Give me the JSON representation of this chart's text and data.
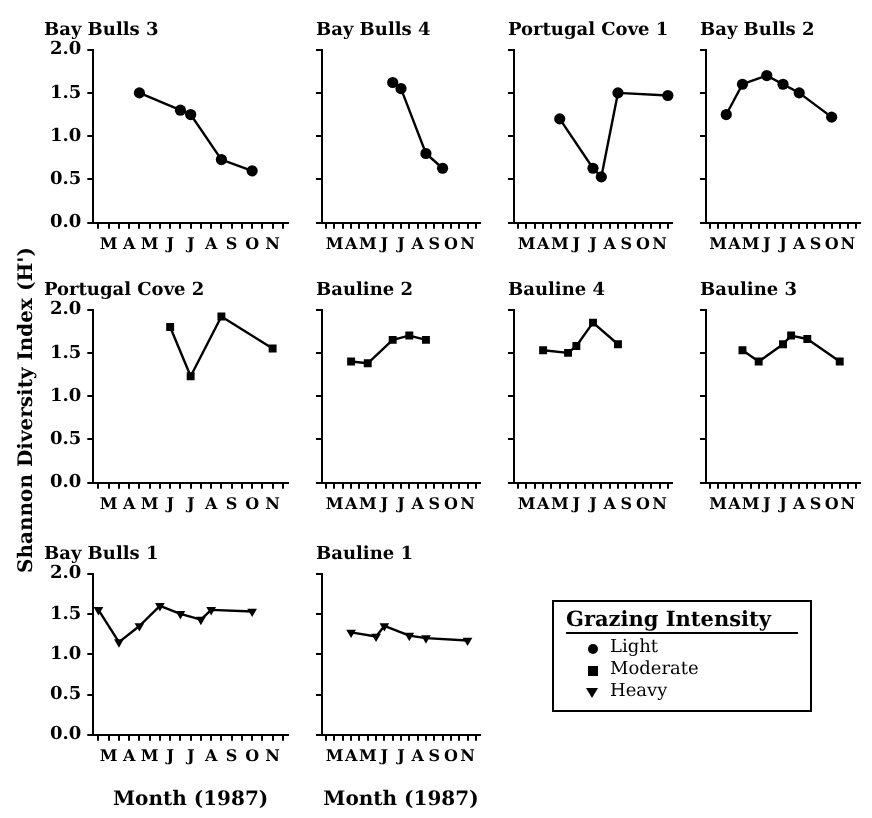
{
  "chart_data": [
    {
      "type": "line",
      "title": "Bay Bulls 3",
      "legend": "bottom right",
      "categories": [
        null,
        "M",
        null,
        "A",
        null,
        "M",
        null,
        "J",
        null,
        "J",
        null,
        "A",
        null,
        "S",
        null,
        "O",
        null,
        "N",
        null
      ],
      "ylim": [
        0,
        2
      ],
      "yticks": [
        {
          "value": 0,
          "label": "0.0"
        },
        {
          "value": 0.5,
          "label": "0.5"
        },
        {
          "value": 1,
          "label": "1.0"
        },
        {
          "value": 1.5,
          "label": "1.5"
        },
        {
          "value": 2,
          "label": "2.0"
        }
      ],
      "grid": false,
      "series": [
        {
          "name": "Light",
          "color": "#000000",
          "marker": "circle",
          "values": [
            null,
            null,
            null,
            null,
            1.5,
            null,
            null,
            null,
            1.3,
            1.25,
            null,
            null,
            0.73,
            null,
            null,
            0.6,
            null,
            null,
            null
          ]
        }
      ]
    },
    {
      "type": "line",
      "title": "Bay Bulls 4",
      "tick_labels": "x",
      "categories": [
        null,
        "M",
        null,
        "A",
        null,
        "M",
        null,
        "J",
        null,
        "J",
        null,
        "A",
        null,
        "S",
        null,
        "O",
        null,
        "N",
        null
      ],
      "ylim": [
        0,
        2
      ],
      "yticks": [
        {
          "value": 0,
          "label": null
        },
        {
          "value": 0.5,
          "label": null
        },
        {
          "value": 1,
          "label": null
        },
        {
          "value": 1.5,
          "label": null
        },
        {
          "value": 2,
          "label": null
        }
      ],
      "grid": false,
      "legend": false,
      "series": [
        {
          "color": "#000000",
          "marker": "circle",
          "values": [
            null,
            null,
            null,
            null,
            null,
            null,
            null,
            null,
            1.62,
            1.55,
            null,
            null,
            0.8,
            null,
            0.63,
            null,
            null,
            null,
            null
          ]
        }
      ]
    },
    {
      "type": "line",
      "title": "Portugal Cove 1",
      "tick_labels": "x",
      "categories": [
        null,
        "M",
        null,
        "A",
        null,
        "M",
        null,
        "J",
        null,
        "J",
        null,
        "A",
        null,
        "S",
        null,
        "O",
        null,
        "N",
        null
      ],
      "ylim": [
        0,
        2
      ],
      "yticks": [
        {
          "value": 0,
          "label": null
        },
        {
          "value": 0.5,
          "label": null
        },
        {
          "value": 1,
          "label": null
        },
        {
          "value": 1.5,
          "label": null
        },
        {
          "value": 2,
          "label": null
        }
      ],
      "grid": false,
      "legend": false,
      "series": [
        {
          "color": "#000000",
          "marker": "circle",
          "values": [
            null,
            null,
            null,
            null,
            null,
            1.2,
            null,
            null,
            null,
            0.63,
            0.53,
            null,
            1.5,
            null,
            null,
            null,
            null,
            null,
            1.47
          ]
        }
      ]
    },
    {
      "type": "line",
      "title": "Bay Bulls 2",
      "tick_labels": "x",
      "categories": [
        null,
        "M",
        null,
        "A",
        null,
        "M",
        null,
        "J",
        null,
        "J",
        null,
        "A",
        null,
        "S",
        null,
        "O",
        null,
        "N",
        null
      ],
      "ylim": [
        0,
        2
      ],
      "yticks": [
        {
          "value": 0,
          "label": null
        },
        {
          "value": 0.5,
          "label": null
        },
        {
          "value": 1,
          "label": null
        },
        {
          "value": 1.5,
          "label": null
        },
        {
          "value": 2,
          "label": null
        }
      ],
      "grid": false,
      "legend": false,
      "series": [
        {
          "color": "#000000",
          "marker": "circle",
          "values": [
            null,
            null,
            1.25,
            null,
            1.6,
            null,
            null,
            1.7,
            null,
            1.6,
            null,
            1.5,
            null,
            null,
            null,
            1.22,
            null,
            null,
            null
          ]
        }
      ]
    },
    {
      "type": "line",
      "title": "Portugal Cove 2",
      "legend": "bottom right",
      "ylabel": "Shannon Diversity Index (H')",
      "categories": [
        null,
        "M",
        null,
        "A",
        null,
        "M",
        null,
        "J",
        null,
        "J",
        null,
        "A",
        null,
        "S",
        null,
        "O",
        null,
        "N",
        null
      ],
      "ylim": [
        0,
        2
      ],
      "yticks": [
        {
          "value": 0,
          "label": "0.0"
        },
        {
          "value": 0.5,
          "label": "0.5"
        },
        {
          "value": 1,
          "label": "1.0"
        },
        {
          "value": 1.5,
          "label": "1.5"
        },
        {
          "value": 2,
          "label": "2.0"
        }
      ],
      "grid": false,
      "series": [
        {
          "name": "Moderate",
          "color": "#000000",
          "marker": "square",
          "values": [
            null,
            null,
            null,
            null,
            null,
            null,
            null,
            1.8,
            null,
            1.23,
            null,
            null,
            1.92,
            null,
            null,
            null,
            null,
            1.55,
            null
          ]
        }
      ]
    },
    {
      "type": "line",
      "title": "Bauline 2",
      "tick_labels": "x",
      "categories": [
        null,
        "M",
        null,
        "A",
        null,
        "M",
        null,
        "J",
        null,
        "J",
        null,
        "A",
        null,
        "S",
        null,
        "O",
        null,
        "N",
        null
      ],
      "ylim": [
        0,
        2
      ],
      "yticks": [
        {
          "value": 0,
          "label": null
        },
        {
          "value": 0.5,
          "label": null
        },
        {
          "value": 1,
          "label": null
        },
        {
          "value": 1.5,
          "label": null
        },
        {
          "value": 2,
          "label": null
        }
      ],
      "grid": false,
      "legend": false,
      "series": [
        {
          "color": "#000000",
          "marker": "square",
          "values": [
            null,
            null,
            null,
            1.4,
            null,
            1.38,
            null,
            null,
            1.65,
            null,
            1.7,
            null,
            1.65,
            null,
            null,
            null,
            null,
            null,
            null
          ]
        }
      ]
    },
    {
      "type": "line",
      "title": "Bauline 4",
      "tick_labels": "x",
      "categories": [
        null,
        "M",
        null,
        "A",
        null,
        "M",
        null,
        "J",
        null,
        "J",
        null,
        "A",
        null,
        "S",
        null,
        "O",
        null,
        "N",
        null
      ],
      "ylim": [
        0,
        2
      ],
      "yticks": [
        {
          "value": 0,
          "label": null
        },
        {
          "value": 0.5,
          "label": null
        },
        {
          "value": 1,
          "label": null
        },
        {
          "value": 1.5,
          "label": null
        },
        {
          "value": 2,
          "label": null
        }
      ],
      "grid": false,
      "legend": false,
      "series": [
        {
          "color": "#000000",
          "marker": "square",
          "values": [
            null,
            null,
            null,
            1.53,
            null,
            null,
            1.5,
            1.58,
            null,
            1.85,
            null,
            null,
            1.6,
            null,
            null,
            null,
            null,
            null,
            null
          ]
        }
      ]
    },
    {
      "type": "line",
      "title": "Bauline 3",
      "tick_labels": "x",
      "categories": [
        null,
        "M",
        null,
        "A",
        null,
        "M",
        null,
        "J",
        null,
        "J",
        null,
        "A",
        null,
        "S",
        null,
        "O",
        null,
        "N",
        null
      ],
      "ylim": [
        0,
        2
      ],
      "yticks": [
        {
          "value": 0,
          "label": null
        },
        {
          "value": 0.5,
          "label": null
        },
        {
          "value": 1,
          "label": null
        },
        {
          "value": 1.5,
          "label": null
        },
        {
          "value": 2,
          "label": null
        }
      ],
      "grid": false,
      "legend": false,
      "series": [
        {
          "color": "#000000",
          "marker": "square",
          "values": [
            null,
            null,
            null,
            null,
            1.53,
            null,
            1.4,
            null,
            null,
            1.6,
            1.7,
            null,
            1.66,
            null,
            null,
            null,
            1.4,
            null,
            null
          ]
        }
      ]
    },
    {
      "type": "line",
      "title": "Bay Bulls 1",
      "xlabel": "Month (1987)",
      "legend": "bottom right",
      "legend_title": "Grazing Intensity",
      "categories": [
        null,
        "M",
        null,
        "A",
        null,
        "M",
        null,
        "J",
        null,
        "J",
        null,
        "A",
        null,
        "S",
        null,
        "O",
        null,
        "N",
        null
      ],
      "ylim": [
        0,
        2
      ],
      "yticks": [
        {
          "value": 0,
          "label": "0.0"
        },
        {
          "value": 0.5,
          "label": "0.5"
        },
        {
          "value": 1,
          "label": "1.0"
        },
        {
          "value": 1.5,
          "label": "1.5"
        },
        {
          "value": 2,
          "label": "2.0"
        }
      ],
      "grid": false,
      "series": [
        {
          "name": "Heavy",
          "color": "#000000",
          "marker": "triangle",
          "values": [
            1.55,
            null,
            1.15,
            null,
            1.35,
            null,
            1.6,
            null,
            1.5,
            null,
            1.43,
            1.55,
            null,
            null,
            null,
            1.53,
            null,
            null,
            null
          ]
        }
      ]
    },
    {
      "type": "line",
      "title": "Bauline 1",
      "xlabel": "Month (1987)",
      "tick_labels": "x",
      "categories": [
        null,
        "M",
        null,
        "A",
        null,
        "M",
        null,
        "J",
        null,
        "J",
        null,
        "A",
        null,
        "S",
        null,
        "O",
        null,
        "N",
        null
      ],
      "ylim": [
        0,
        2
      ],
      "yticks": [
        {
          "value": 0,
          "label": null
        },
        {
          "value": 0.5,
          "label": null
        },
        {
          "value": 1,
          "label": null
        },
        {
          "value": 1.5,
          "label": null
        },
        {
          "value": 2,
          "label": null
        }
      ],
      "grid": false,
      "legend": false,
      "series": [
        {
          "color": "#000000",
          "marker": "triangle",
          "values": [
            null,
            null,
            null,
            1.27,
            null,
            null,
            1.22,
            1.35,
            null,
            null,
            1.23,
            null,
            1.2,
            null,
            null,
            null,
            null,
            1.17,
            null
          ]
        }
      ]
    }
  ]
}
